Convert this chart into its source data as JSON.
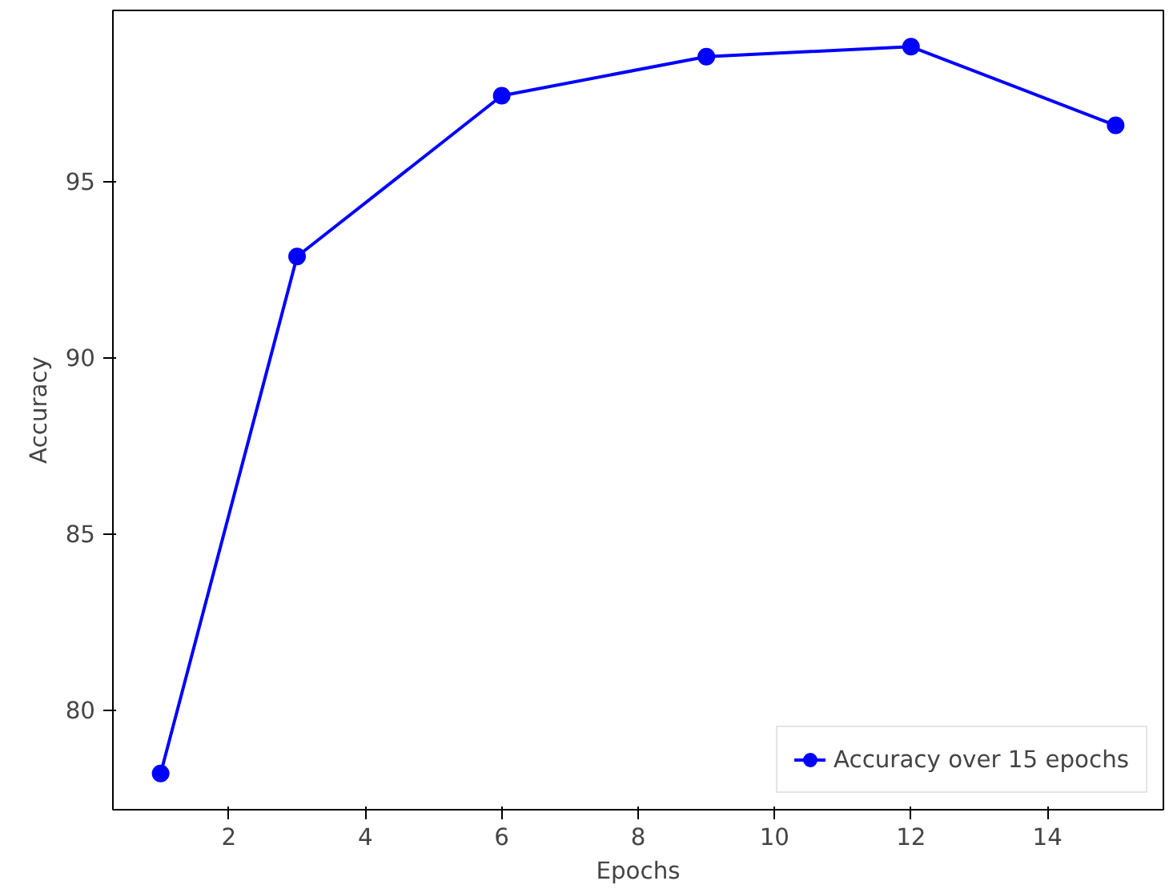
{
  "chart_data": {
    "type": "line",
    "xlabel": "Epochs",
    "ylabel": "Accuracy",
    "x": [
      1,
      3,
      6,
      9,
      12,
      15
    ],
    "series": [
      {
        "name": "Accuracy over 15 epochs",
        "color": "#0000ff",
        "values": [
          78.2,
          92.86,
          97.42,
          98.53,
          98.81,
          96.58
        ]
      }
    ],
    "xlim": [
      0.3,
      15.7
    ],
    "ylim": [
      77.17,
      99.84
    ],
    "xticks": [
      2,
      4,
      6,
      8,
      10,
      12,
      14
    ],
    "yticks": [
      80,
      85,
      90,
      95
    ],
    "marker": "circle",
    "line_style": "solid",
    "legend": "bottom right",
    "grid": false
  }
}
